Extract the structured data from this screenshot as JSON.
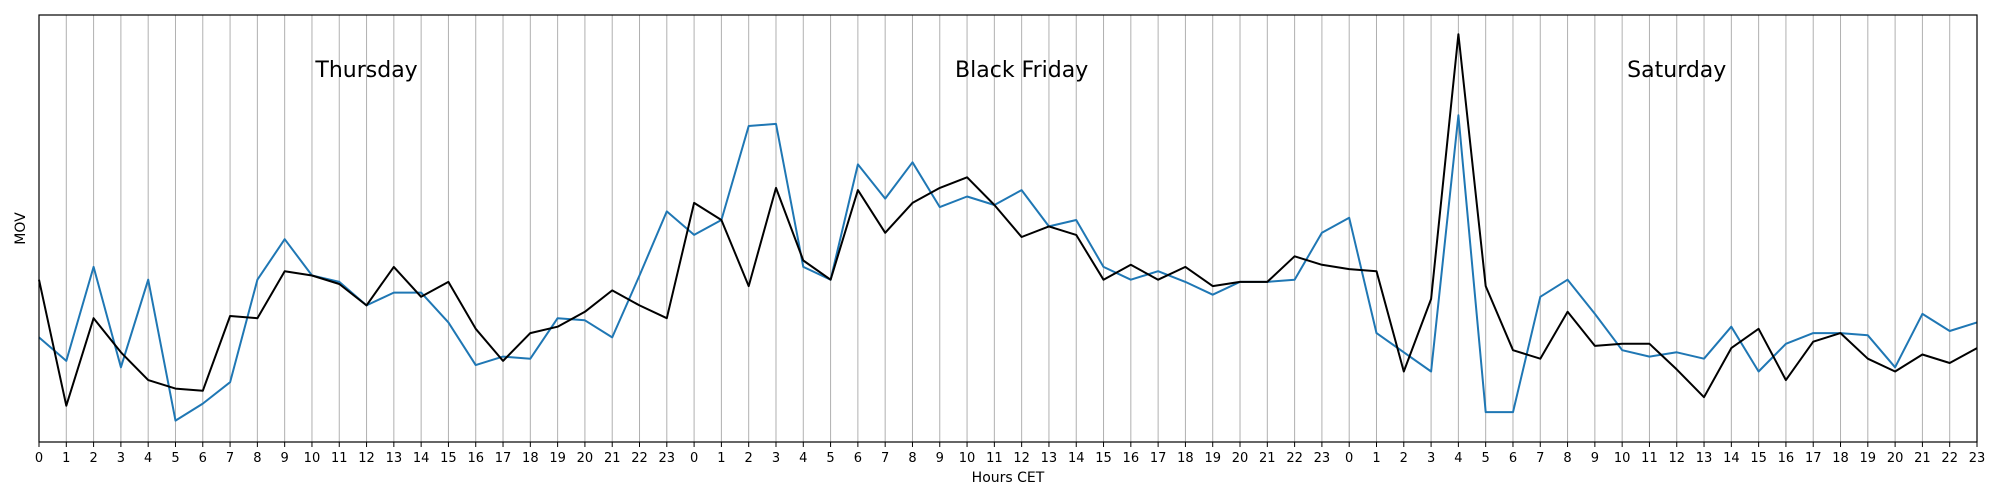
{
  "chart_data": {
    "type": "line",
    "xlabel": "Hours CET",
    "ylabel": "MOV",
    "grid": "vertical",
    "x_ticks": [
      "0",
      "1",
      "2",
      "3",
      "4",
      "5",
      "6",
      "7",
      "8",
      "9",
      "10",
      "11",
      "12",
      "13",
      "14",
      "15",
      "16",
      "17",
      "18",
      "19",
      "20",
      "21",
      "22",
      "23",
      "0",
      "1",
      "2",
      "3",
      "4",
      "5",
      "6",
      "7",
      "8",
      "9",
      "10",
      "11",
      "12",
      "13",
      "14",
      "15",
      "16",
      "17",
      "18",
      "19",
      "20",
      "21",
      "22",
      "23",
      "0",
      "1",
      "2",
      "3",
      "4",
      "5",
      "6",
      "7",
      "8",
      "9",
      "10",
      "11",
      "12",
      "13",
      "14",
      "15",
      "16",
      "17",
      "18",
      "19",
      "20",
      "21",
      "22",
      "23"
    ],
    "annotations": [
      {
        "text": "Thursday",
        "x_index": 12
      },
      {
        "text": "Black Friday",
        "x_index": 36
      },
      {
        "text": "Saturday",
        "x_index": 60
      }
    ],
    "xlim": [
      0,
      71
    ],
    "ylim": [
      0,
      1
    ],
    "series": [
      {
        "color": "#1f77b4",
        "values": [
          0.245,
          0.19,
          0.41,
          0.175,
          0.38,
          0.05,
          0.09,
          0.14,
          0.38,
          0.475,
          0.39,
          0.375,
          0.32,
          0.35,
          0.35,
          0.28,
          0.18,
          0.2,
          0.195,
          0.29,
          0.285,
          0.245,
          0.39,
          0.54,
          0.485,
          0.52,
          0.74,
          0.745,
          0.41,
          0.38,
          0.65,
          0.57,
          0.655,
          0.55,
          0.575,
          0.555,
          0.59,
          0.505,
          0.52,
          0.41,
          0.38,
          0.4,
          0.375,
          0.345,
          0.375,
          0.375,
          0.38,
          0.49,
          0.525,
          0.255,
          0.21,
          0.165,
          0.765,
          0.07,
          0.07,
          0.34,
          0.38,
          0.3,
          0.215,
          0.2,
          0.21,
          0.195,
          0.27,
          0.165,
          0.23,
          0.255,
          0.255,
          0.25,
          0.175,
          0.3,
          0.26,
          0.28
        ]
      },
      {
        "color": "#000000",
        "values": [
          0.38,
          0.085,
          0.29,
          0.21,
          0.145,
          0.125,
          0.12,
          0.295,
          0.29,
          0.4,
          0.39,
          0.37,
          0.32,
          0.41,
          0.34,
          0.375,
          0.265,
          0.19,
          0.255,
          0.27,
          0.305,
          0.355,
          0.32,
          0.29,
          0.56,
          0.52,
          0.365,
          0.595,
          0.425,
          0.38,
          0.59,
          0.49,
          0.56,
          0.595,
          0.62,
          0.555,
          0.48,
          0.505,
          0.485,
          0.38,
          0.415,
          0.38,
          0.41,
          0.365,
          0.375,
          0.375,
          0.435,
          0.415,
          0.405,
          0.4,
          0.165,
          0.335,
          0.955,
          0.365,
          0.215,
          0.195,
          0.305,
          0.225,
          0.23,
          0.23,
          0.17,
          0.105,
          0.22,
          0.265,
          0.145,
          0.235,
          0.255,
          0.195,
          0.165,
          0.205,
          0.185,
          0.22
        ]
      }
    ]
  }
}
